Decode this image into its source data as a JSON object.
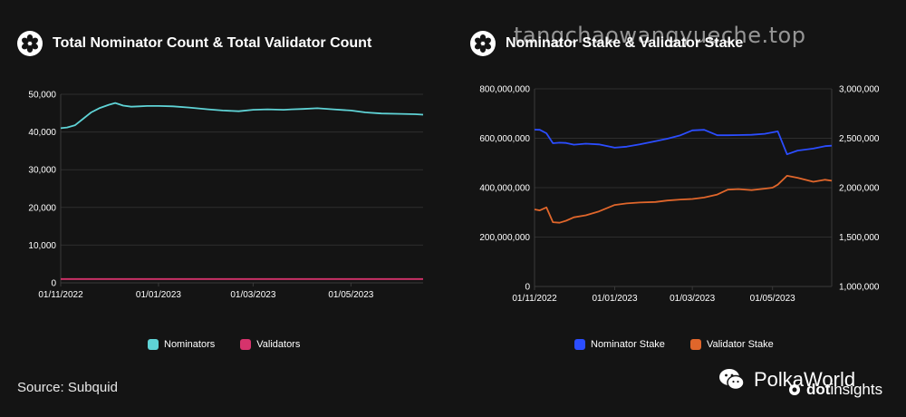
{
  "watermark": "tangchaowangyueche.top",
  "source_text": "Source: Subquid",
  "brand": {
    "name": "PolkaWorld",
    "sub_prefix": "dot",
    "sub_suffix": "insights"
  },
  "colors": {
    "nominators": "#5fd3d6",
    "validators": "#d6336c",
    "nominator_stake": "#2b4dff",
    "validator_stake": "#e0662b"
  },
  "chart_data": [
    {
      "type": "line",
      "title": "Total Nominator Count & Total Validator Count",
      "xlabel": "",
      "ylabel": "",
      "x_ticks": [
        "01/11/2022",
        "01/01/2023",
        "01/03/2023",
        "01/05/2023"
      ],
      "y_ticks": [
        "0",
        "10,000",
        "20,000",
        "30,000",
        "40,000",
        "50,000"
      ],
      "ylim": [
        0,
        50000
      ],
      "grid": true,
      "legend": "bottom",
      "x": [
        "2022-11-01",
        "2022-11-05",
        "2022-11-10",
        "2022-11-15",
        "2022-11-20",
        "2022-11-25",
        "2022-12-01",
        "2022-12-05",
        "2022-12-10",
        "2022-12-15",
        "2022-12-20",
        "2022-12-25",
        "2023-01-01",
        "2023-01-10",
        "2023-01-20",
        "2023-02-01",
        "2023-02-10",
        "2023-02-20",
        "2023-03-01",
        "2023-03-10",
        "2023-03-20",
        "2023-03-25",
        "2023-04-01",
        "2023-04-10",
        "2023-04-20",
        "2023-05-01",
        "2023-05-10",
        "2023-05-20",
        "2023-06-01",
        "2023-06-10",
        "2023-06-15"
      ],
      "series": [
        {
          "name": "Nominators",
          "values": [
            41000,
            41200,
            41800,
            43500,
            45200,
            46300,
            47200,
            47700,
            47000,
            46700,
            46800,
            46900,
            46900,
            46800,
            46500,
            46000,
            45700,
            45500,
            45900,
            46000,
            45900,
            46000,
            46100,
            46300,
            46000,
            45700,
            45200,
            44900,
            44800,
            44700,
            44600
          ]
        },
        {
          "name": "Validators",
          "values": [
            1000,
            1000,
            1000,
            1000,
            1000,
            1000,
            1000,
            1000,
            1000,
            1000,
            1000,
            1000,
            1000,
            1000,
            1000,
            1000,
            1000,
            1000,
            1000,
            1000,
            1000,
            1000,
            1000,
            1000,
            1000,
            1000,
            1000,
            1000,
            1000,
            1000,
            1000
          ]
        }
      ]
    },
    {
      "type": "line",
      "title": "Nominator Stake & Validator Stake",
      "xlabel": "",
      "ylabel": "",
      "x_ticks": [
        "01/11/2022",
        "01/01/2023",
        "01/03/2023",
        "01/05/2023"
      ],
      "y_ticks_left": [
        "0",
        "200,000,000",
        "400,000,000",
        "600,000,000",
        "800,000,000"
      ],
      "y_ticks_right": [
        "1,000,000",
        "1,500,000",
        "2,000,000",
        "2,500,000",
        "3,000,000"
      ],
      "ylim_left": [
        0,
        800000000
      ],
      "ylim_right": [
        1000000,
        3000000
      ],
      "grid": true,
      "legend": "bottom",
      "x": [
        "2022-11-01",
        "2022-11-05",
        "2022-11-10",
        "2022-11-15",
        "2022-11-20",
        "2022-11-25",
        "2022-12-01",
        "2022-12-10",
        "2022-12-20",
        "2023-01-01",
        "2023-01-10",
        "2023-01-20",
        "2023-02-01",
        "2023-02-10",
        "2023-02-20",
        "2023-03-01",
        "2023-03-10",
        "2023-03-20",
        "2023-03-28",
        "2023-04-05",
        "2023-04-15",
        "2023-04-25",
        "2023-05-01",
        "2023-05-05",
        "2023-05-12",
        "2023-05-20",
        "2023-06-01",
        "2023-06-10",
        "2023-06-15"
      ],
      "series": [
        {
          "name": "Nominator Stake",
          "axis": "left",
          "values": [
            635000000,
            634000000,
            620000000,
            580000000,
            582000000,
            581000000,
            574000000,
            578000000,
            575000000,
            562000000,
            566000000,
            575000000,
            588000000,
            598000000,
            612000000,
            632000000,
            634000000,
            612000000,
            612000000,
            613000000,
            614000000,
            618000000,
            624000000,
            628000000,
            535000000,
            550000000,
            558000000,
            568000000,
            570000000
          ]
        },
        {
          "name": "Validator Stake",
          "axis": "right",
          "values": [
            1780000,
            1770000,
            1800000,
            1650000,
            1645000,
            1665000,
            1700000,
            1720000,
            1760000,
            1825000,
            1840000,
            1850000,
            1855000,
            1870000,
            1880000,
            1885000,
            1900000,
            1930000,
            1980000,
            1985000,
            1975000,
            1990000,
            2000000,
            2030000,
            2120000,
            2100000,
            2060000,
            2080000,
            2070000
          ]
        }
      ]
    }
  ]
}
